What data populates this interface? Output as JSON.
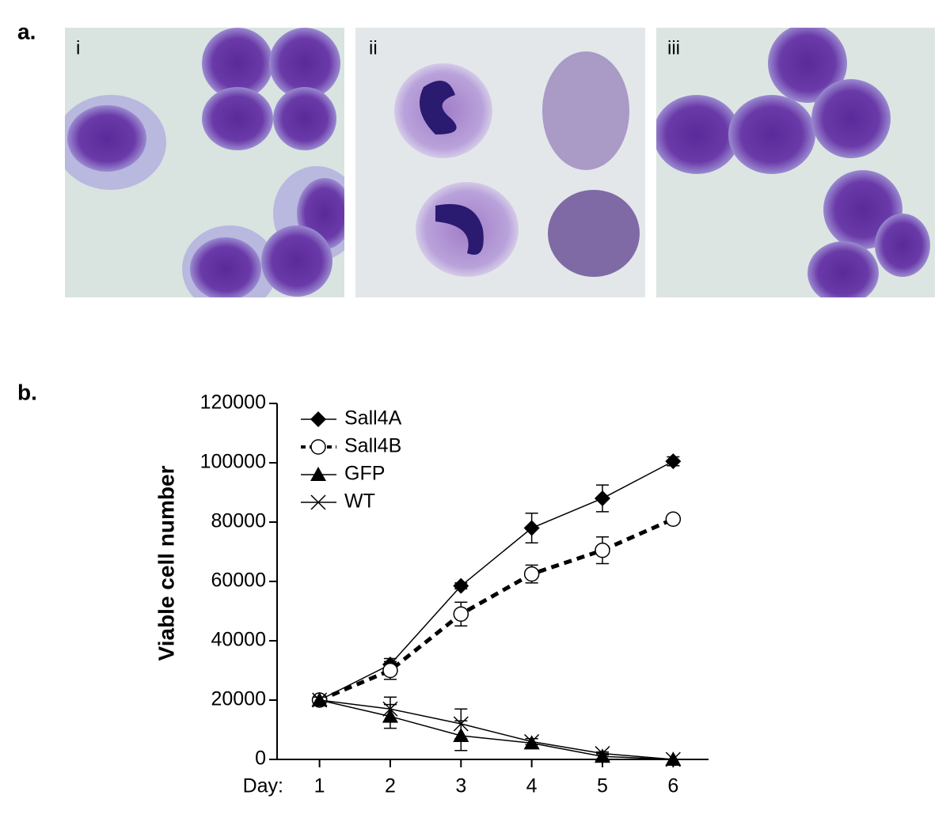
{
  "panel_a": {
    "label": "a.",
    "images": [
      {
        "label": "i"
      },
      {
        "label": "ii"
      },
      {
        "label": "iii"
      }
    ]
  },
  "chart_data": {
    "type": "line",
    "panel_label": "b.",
    "ylabel": "Viable cell number",
    "xlabel": "Day:",
    "x": [
      1,
      2,
      3,
      4,
      5,
      6
    ],
    "xlim": [
      0.4,
      6.5
    ],
    "xticks": [
      1,
      2,
      3,
      4,
      5,
      6
    ],
    "ylim": [
      0,
      120000
    ],
    "yticks": [
      0,
      20000,
      40000,
      60000,
      80000,
      100000,
      120000
    ],
    "legend": "upper left",
    "series": [
      {
        "name": "Sall4A",
        "color": "#000000",
        "marker": "diamond",
        "line_style": "solid",
        "values": [
          20000,
          32000,
          58500,
          78000,
          88000,
          100500
        ],
        "errors": [
          1000,
          2000,
          1000,
          5000,
          4500,
          1500
        ]
      },
      {
        "name": "Sall4B",
        "color": "#000000",
        "marker": "open-circle",
        "line_style": "dashed",
        "values": [
          20000,
          30000,
          49000,
          62500,
          70500,
          81000
        ],
        "errors": [
          1000,
          3000,
          4000,
          3000,
          4500,
          500
        ]
      },
      {
        "name": "GFP",
        "color": "#000000",
        "marker": "triangle",
        "line_style": "solid",
        "values": [
          20000,
          14500,
          8000,
          5500,
          1000,
          0
        ],
        "errors": [
          1000,
          4000,
          5000,
          1500,
          1000,
          0
        ]
      },
      {
        "name": "WT",
        "color": "#000000",
        "marker": "x",
        "line_style": "solid",
        "values": [
          20000,
          17000,
          12000,
          6000,
          2000,
          0
        ],
        "errors": [
          1000,
          4000,
          5000,
          1000,
          500,
          0
        ]
      }
    ]
  }
}
